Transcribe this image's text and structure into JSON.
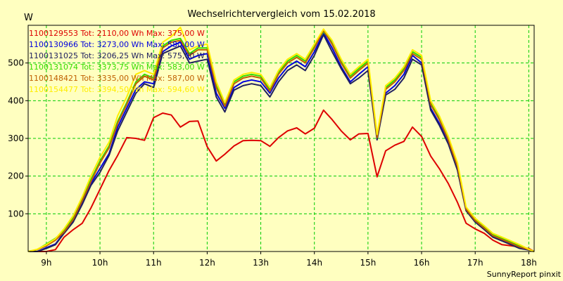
{
  "chart_data": {
    "type": "line",
    "title": "Wechselrichtervergleich vom 15.02.2018",
    "ylabel": "W",
    "xlabel": "",
    "credit": "SunnyReport pinxit",
    "grid": true,
    "background": "#ffffc0",
    "grid_color": "#00cc00",
    "legend_position": "top-left",
    "xlim": [
      8.66,
      18.1
    ],
    "ylim": [
      0,
      600
    ],
    "x_ticks": [
      9,
      10,
      11,
      12,
      13,
      14,
      15,
      16,
      17,
      18
    ],
    "x_tick_labels": [
      "9h",
      "10h",
      "11h",
      "12h",
      "13h",
      "14h",
      "15h",
      "16h",
      "17h",
      "18h"
    ],
    "y_ticks": [
      100,
      200,
      300,
      400,
      500
    ],
    "x": [
      8.66,
      8.83,
      9.0,
      9.17,
      9.33,
      9.5,
      9.67,
      9.83,
      10.0,
      10.17,
      10.33,
      10.5,
      10.67,
      10.83,
      11.0,
      11.17,
      11.33,
      11.5,
      11.67,
      11.83,
      12.0,
      12.17,
      12.33,
      12.5,
      12.67,
      12.83,
      13.0,
      13.17,
      13.33,
      13.5,
      13.67,
      13.83,
      14.0,
      14.17,
      14.33,
      14.5,
      14.67,
      14.83,
      15.0,
      15.17,
      15.33,
      15.5,
      15.67,
      15.83,
      16.0,
      16.17,
      16.33,
      16.5,
      16.67,
      16.83,
      17.0,
      17.17,
      17.33,
      17.5,
      17.67,
      17.83,
      18.0,
      18.1
    ],
    "series": [
      {
        "name": "1100129553 Tot: 2110,00 Wh Max: 375,00 W",
        "color": "#dd0000",
        "values": [
          0,
          0,
          0,
          5,
          38,
          58,
          75,
          115,
          165,
          215,
          255,
          302,
          300,
          295,
          355,
          367,
          362,
          330,
          345,
          346,
          278,
          240,
          258,
          280,
          294,
          295,
          294,
          279,
          302,
          320,
          328,
          312,
          327,
          375,
          350,
          320,
          296,
          312,
          313,
          198,
          267,
          282,
          292,
          330,
          305,
          253,
          220,
          180,
          130,
          75,
          60,
          48,
          30,
          18,
          15,
          12,
          8,
          0
        ]
      },
      {
        "name": "1100130966 Tot: 3273,00 Wh Max: 580,00 W",
        "color": "#0000dd",
        "values": [
          0,
          0,
          10,
          20,
          50,
          80,
          130,
          180,
          220,
          260,
          330,
          380,
          430,
          450,
          445,
          530,
          545,
          555,
          510,
          520,
          525,
          420,
          380,
          435,
          450,
          455,
          450,
          420,
          460,
          490,
          505,
          490,
          530,
          580,
          540,
          490,
          450,
          470,
          490,
          300,
          420,
          440,
          470,
          520,
          500,
          380,
          340,
          290,
          220,
          110,
          80,
          60,
          40,
          30,
          20,
          10,
          5,
          0
        ]
      },
      {
        "name": "1100131025 Tot: 3206,25 Wh Max: 575,00 W",
        "color": "#202060",
        "values": [
          0,
          0,
          8,
          18,
          48,
          78,
          125,
          175,
          210,
          255,
          320,
          370,
          420,
          445,
          435,
          525,
          535,
          545,
          500,
          505,
          510,
          410,
          370,
          428,
          440,
          445,
          440,
          410,
          450,
          480,
          495,
          480,
          520,
          575,
          530,
          485,
          445,
          460,
          480,
          296,
          415,
          430,
          460,
          510,
          495,
          375,
          335,
          285,
          215,
          108,
          78,
          58,
          38,
          28,
          18,
          8,
          4,
          0
        ]
      },
      {
        "name": "1100131074 Tot: 3373,75 Wh Max: 583,00 W",
        "color": "#33dd00",
        "values": [
          0,
          5,
          20,
          35,
          55,
          90,
          140,
          190,
          240,
          280,
          345,
          395,
          450,
          470,
          460,
          545,
          560,
          565,
          525,
          540,
          540,
          440,
          390,
          450,
          465,
          470,
          465,
          430,
          475,
          505,
          520,
          505,
          545,
          583,
          555,
          505,
          465,
          485,
          505,
          305,
          435,
          455,
          485,
          530,
          515,
          395,
          355,
          300,
          230,
          115,
          85,
          65,
          45,
          35,
          25,
          15,
          5,
          0
        ]
      },
      {
        "name": "1100148421 Tot: 3335,00 Wh Max: 587,00 W",
        "color": "#c06000",
        "values": [
          0,
          5,
          15,
          30,
          52,
          85,
          135,
          185,
          235,
          275,
          340,
          390,
          445,
          465,
          455,
          540,
          555,
          560,
          520,
          535,
          535,
          435,
          385,
          445,
          460,
          465,
          460,
          425,
          470,
          500,
          515,
          500,
          540,
          587,
          550,
          500,
          460,
          480,
          500,
          302,
          430,
          450,
          480,
          525,
          510,
          390,
          350,
          295,
          225,
          112,
          82,
          62,
          42,
          32,
          22,
          12,
          5,
          0
        ]
      },
      {
        "name": "1100154477 Tot: 3394,50 Wh Max: 594,60 W",
        "color": "#ffee00",
        "values": [
          0,
          6,
          18,
          34,
          60,
          95,
          145,
          200,
          250,
          290,
          360,
          410,
          470,
          480,
          470,
          555,
          570,
          594.6,
          535,
          545,
          550,
          450,
          395,
          455,
          470,
          475,
          470,
          435,
          480,
          510,
          525,
          510,
          550,
          590,
          560,
          510,
          470,
          490,
          510,
          310,
          440,
          460,
          490,
          535,
          520,
          400,
          360,
          305,
          235,
          118,
          88,
          68,
          48,
          38,
          28,
          18,
          6,
          0
        ]
      }
    ]
  }
}
